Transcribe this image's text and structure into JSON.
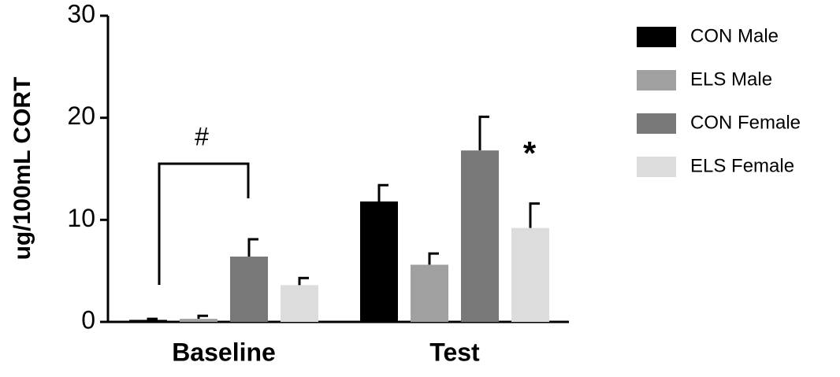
{
  "chart_data": {
    "type": "bar",
    "categories": [
      "Baseline",
      "Test"
    ],
    "y_label": "ug/100mL CORT",
    "ylim": [
      0,
      30
    ],
    "yticks": [
      0,
      10,
      20,
      30
    ],
    "series": [
      {
        "name": "CON Male",
        "color": "#000000",
        "values": [
          0.2,
          11.8
        ],
        "errors": [
          0.1,
          1.6
        ]
      },
      {
        "name": "ELS Male",
        "color": "#a0a0a0",
        "values": [
          0.3,
          5.6
        ],
        "errors": [
          0.3,
          1.1
        ]
      },
      {
        "name": "CON Female",
        "color": "#787878",
        "values": [
          6.4,
          16.8
        ],
        "errors": [
          1.7,
          3.3
        ]
      },
      {
        "name": "ELS Female",
        "color": "#dcdcdc",
        "values": [
          3.6,
          9.2
        ],
        "errors": [
          0.7,
          2.4
        ]
      }
    ],
    "annotations": [
      "#",
      "*"
    ],
    "legend": "right"
  }
}
